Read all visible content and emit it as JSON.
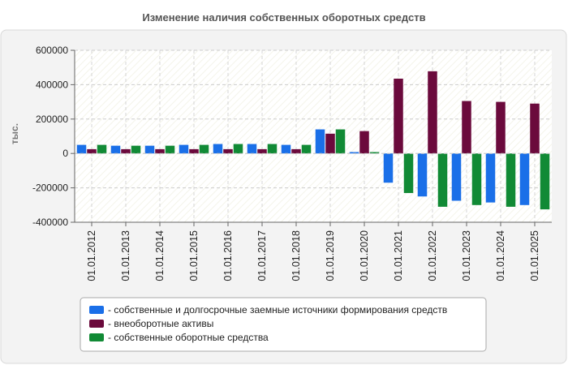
{
  "chart_data": {
    "type": "bar",
    "title": "Изменение наличия собственных оборотных средств",
    "ylabel": "тыс.",
    "xlabel": "",
    "ylim": [
      -400000,
      600000
    ],
    "yticks": [
      600000,
      400000,
      200000,
      0,
      -200000,
      -400000
    ],
    "ytick_labels": [
      "600000",
      "400000",
      "200000",
      "0",
      "-200000",
      "-400000"
    ],
    "categories": [
      "01.01.2012",
      "01.01.2013",
      "01.01.2014",
      "01.01.2015",
      "01.01.2016",
      "01.01.2017",
      "01.01.2018",
      "01.01.2019",
      "01.01.2020",
      "01.01.2021",
      "01.01.2022",
      "01.01.2023",
      "01.01.2024",
      "01.01.2025"
    ],
    "legend_position": "bottom",
    "grid": true,
    "series": [
      {
        "name": "собственные и долгосрочные заемные источники формирования средств",
        "legend_text": "- собственные и долгосрочные заемные источники формирования средств",
        "color": "#1a6fe8",
        "values": [
          50000,
          45000,
          45000,
          50000,
          55000,
          55000,
          50000,
          140000,
          8000,
          -170000,
          -250000,
          -275000,
          -285000,
          -300000
        ]
      },
      {
        "name": "внеоборотные активы",
        "legend_text": "- внеоборотные активы",
        "color": "#6b0a3c",
        "values": [
          25000,
          25000,
          25000,
          25000,
          25000,
          25000,
          25000,
          115000,
          130000,
          435000,
          478000,
          305000,
          300000,
          290000
        ]
      },
      {
        "name": "собственные оборотные средства",
        "legend_text": "- собственные оборотные средства",
        "color": "#118a35",
        "values": [
          50000,
          45000,
          45000,
          50000,
          55000,
          55000,
          50000,
          140000,
          8000,
          -230000,
          -310000,
          -300000,
          -310000,
          -325000
        ]
      }
    ]
  }
}
